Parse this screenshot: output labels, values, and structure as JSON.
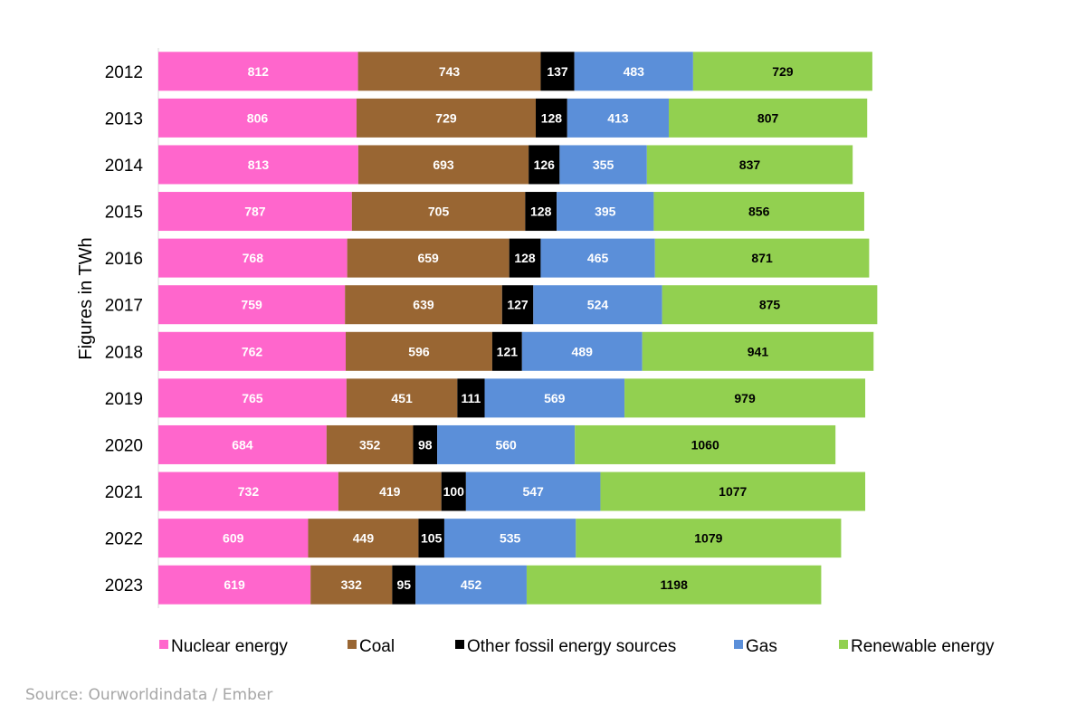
{
  "chart_data": {
    "type": "bar",
    "orientation": "horizontal",
    "stacked": true,
    "ylabel": "Figures in TWh",
    "xlim": [
      0,
      3000
    ],
    "grid": false,
    "legend_position": "bottom",
    "categories": [
      "2012",
      "2013",
      "2014",
      "2015",
      "2016",
      "2017",
      "2018",
      "2019",
      "2020",
      "2021",
      "2022",
      "2023"
    ],
    "series": [
      {
        "name": "Nuclear energy",
        "color": "#ff66cc",
        "label_color": "#ffffff",
        "values": [
          812,
          806,
          813,
          787,
          768,
          759,
          762,
          765,
          684,
          732,
          609,
          619
        ]
      },
      {
        "name": "Coal",
        "color": "#996633",
        "label_color": "#ffffff",
        "values": [
          743,
          729,
          693,
          705,
          659,
          639,
          596,
          451,
          352,
          419,
          449,
          332
        ]
      },
      {
        "name": "Other fossil energy sources",
        "color": "#000000",
        "label_color": "#ffffff",
        "values": [
          137,
          128,
          126,
          128,
          128,
          127,
          121,
          111,
          98,
          100,
          105,
          95
        ]
      },
      {
        "name": "Gas",
        "color": "#5b8fd9",
        "label_color": "#ffffff",
        "values": [
          483,
          413,
          355,
          395,
          465,
          524,
          489,
          569,
          560,
          547,
          535,
          452
        ]
      },
      {
        "name": "Renewable energy",
        "color": "#92d050",
        "label_color": "#000000",
        "values": [
          729,
          807,
          837,
          856,
          871,
          875,
          941,
          979,
          1060,
          1077,
          1079,
          1198
        ]
      }
    ]
  },
  "source": "Source: Ourworldindata / Ember"
}
